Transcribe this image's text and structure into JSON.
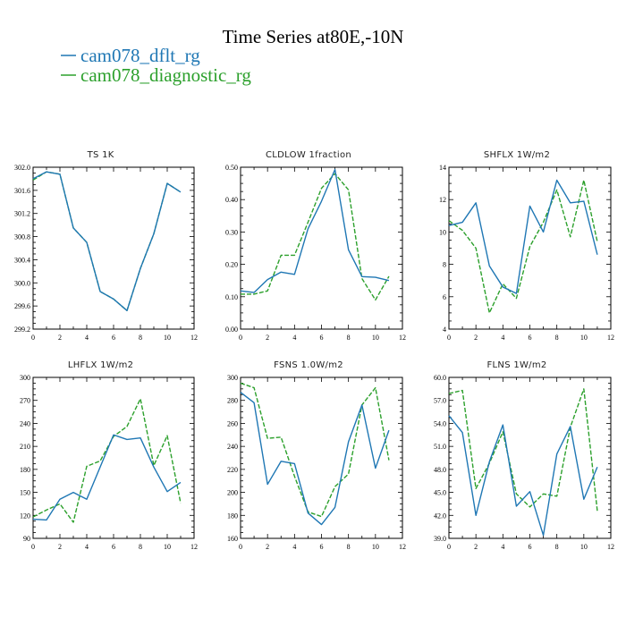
{
  "figure_title": "Time Series at80E,-10N",
  "legend": [
    {
      "name": "cam078_dflt_rg",
      "color": "#1f77b4",
      "dash": "solid"
    },
    {
      "name": "cam078_diagnostic_rg",
      "color": "#2ca02c",
      "dash": "dashed"
    }
  ],
  "chart_data": [
    {
      "type": "line",
      "title": "TS   1K",
      "x": [
        0,
        1,
        2,
        3,
        4,
        5,
        6,
        7,
        8,
        9,
        10,
        11
      ],
      "xlim": [
        0,
        12
      ],
      "xticks": [
        0,
        2,
        4,
        6,
        8,
        10,
        12
      ],
      "ylim": [
        299.2,
        302.0
      ],
      "yticks": [
        "299.2",
        "299.6",
        "300.0",
        "300.4",
        "300.8",
        "301.2",
        "301.6",
        "302.0"
      ],
      "series": [
        {
          "name": "cam078_dflt_rg",
          "values": [
            301.8,
            301.92,
            301.88,
            300.95,
            300.7,
            299.85,
            299.72,
            299.52,
            300.25,
            300.85,
            301.72,
            301.57
          ]
        },
        {
          "name": "cam078_diagnostic_rg",
          "values": [
            301.78,
            301.92,
            301.88,
            300.95,
            300.7,
            299.85,
            299.72,
            299.52,
            300.25,
            300.85,
            301.72,
            301.57
          ]
        }
      ]
    },
    {
      "type": "line",
      "title": "CLDLOW   1fraction",
      "x": [
        0,
        1,
        2,
        3,
        4,
        5,
        6,
        7,
        8,
        9,
        10,
        11
      ],
      "xlim": [
        0,
        12
      ],
      "xticks": [
        0,
        2,
        4,
        6,
        8,
        10,
        12
      ],
      "ylim": [
        0.0,
        0.5
      ],
      "yticks": [
        "0.00",
        "0.10",
        "0.20",
        "0.30",
        "0.40",
        "0.50"
      ],
      "series": [
        {
          "name": "cam078_dflt_rg",
          "values": [
            0.118,
            0.113,
            0.153,
            0.176,
            0.169,
            0.31,
            0.395,
            0.493,
            0.245,
            0.162,
            0.16,
            0.15
          ]
        },
        {
          "name": "cam078_diagnostic_rg",
          "values": [
            0.108,
            0.108,
            0.118,
            0.228,
            0.228,
            0.33,
            0.435,
            0.48,
            0.43,
            0.156,
            0.09,
            0.163
          ]
        }
      ]
    },
    {
      "type": "line",
      "title": "SHFLX   1W/m2",
      "x": [
        0,
        1,
        2,
        3,
        4,
        5,
        6,
        7,
        8,
        9,
        10,
        11
      ],
      "xlim": [
        0,
        12
      ],
      "xticks": [
        0,
        2,
        4,
        6,
        8,
        10,
        12
      ],
      "ylim": [
        4,
        14
      ],
      "yticks": [
        "4",
        "6",
        "8",
        "10",
        "12",
        "14"
      ],
      "series": [
        {
          "name": "cam078_dflt_rg",
          "values": [
            10.4,
            10.6,
            11.8,
            7.9,
            6.6,
            6.2,
            11.6,
            10.0,
            13.2,
            11.8,
            11.9,
            8.6
          ]
        },
        {
          "name": "cam078_diagnostic_rg",
          "values": [
            10.7,
            10.1,
            9.0,
            5.0,
            6.8,
            5.9,
            9.1,
            10.6,
            12.6,
            9.7,
            13.2,
            9.4
          ]
        }
      ]
    },
    {
      "type": "line",
      "title": "LHFLX   1W/m2",
      "x": [
        0,
        1,
        2,
        3,
        4,
        5,
        6,
        7,
        8,
        9,
        10,
        11
      ],
      "xlim": [
        0,
        12
      ],
      "xticks": [
        0,
        2,
        4,
        6,
        8,
        10,
        12
      ],
      "ylim": [
        90,
        300
      ],
      "yticks": [
        "90",
        "120",
        "150",
        "180",
        "210",
        "240",
        "270",
        "300"
      ],
      "series": [
        {
          "name": "cam078_dflt_rg",
          "values": [
            115,
            114,
            141,
            150,
            141,
            183,
            225,
            219,
            221,
            183,
            151,
            163
          ]
        },
        {
          "name": "cam078_diagnostic_rg",
          "values": [
            118,
            127,
            135,
            111,
            184,
            191,
            223,
            236,
            272,
            185,
            224,
            136
          ]
        }
      ]
    },
    {
      "type": "line",
      "title": "FSNS   1.0W/m2",
      "x": [
        0,
        1,
        2,
        3,
        4,
        5,
        6,
        7,
        8,
        9,
        10,
        11
      ],
      "xlim": [
        0,
        12
      ],
      "xticks": [
        0,
        2,
        4,
        6,
        8,
        10,
        12
      ],
      "ylim": [
        160,
        300
      ],
      "yticks": [
        "160",
        "180",
        "200",
        "220",
        "240",
        "260",
        "280",
        "300"
      ],
      "series": [
        {
          "name": "cam078_dflt_rg",
          "values": [
            287,
            278,
            207,
            227,
            225,
            182,
            172,
            187,
            244,
            276,
            221,
            254
          ]
        },
        {
          "name": "cam078_diagnostic_rg",
          "values": [
            295,
            291,
            247,
            248,
            214,
            183,
            179,
            205,
            216,
            276,
            291,
            228
          ]
        }
      ]
    },
    {
      "type": "line",
      "title": "FLNS   1W/m2",
      "x": [
        0,
        1,
        2,
        3,
        4,
        5,
        6,
        7,
        8,
        9,
        10,
        11
      ],
      "xlim": [
        0,
        12
      ],
      "xticks": [
        0,
        2,
        4,
        6,
        8,
        10,
        12
      ],
      "ylim": [
        39.0,
        60.0
      ],
      "yticks": [
        "39.0",
        "42.0",
        "45.0",
        "48.0",
        "51.0",
        "54.0",
        "57.0",
        "60.0"
      ],
      "series": [
        {
          "name": "cam078_dflt_rg",
          "values": [
            55.0,
            52.8,
            42.0,
            49.0,
            53.8,
            43.2,
            45.1,
            39.4,
            50.0,
            53.6,
            44.1,
            48.3
          ]
        },
        {
          "name": "cam078_diagnostic_rg",
          "values": [
            57.9,
            58.3,
            45.5,
            48.8,
            52.9,
            44.8,
            43.1,
            44.8,
            44.5,
            53.5,
            58.5,
            42.6
          ]
        }
      ]
    }
  ]
}
